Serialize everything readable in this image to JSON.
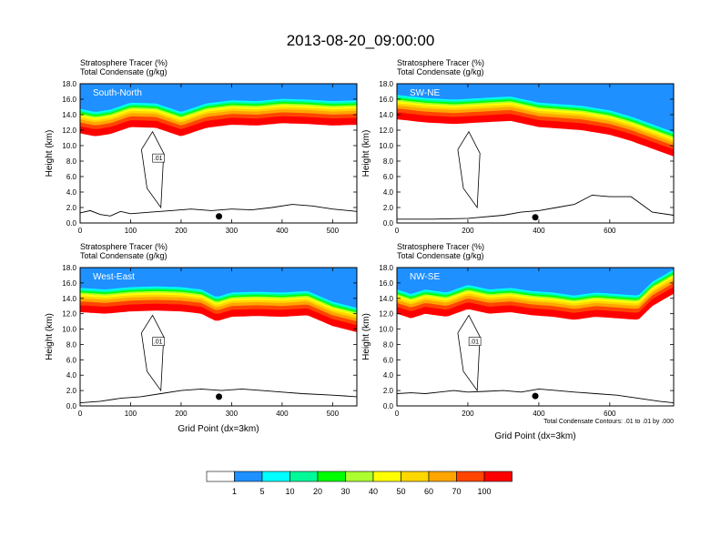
{
  "figure_title": "2013-08-20_09:00:00",
  "chart_data": [
    {
      "type": "contour",
      "label": "South-North",
      "title": [
        "Stratosphere Tracer   (%)",
        "Total Condensate   (g/kg)"
      ],
      "xlabel": "",
      "ylabel": "Height (km)",
      "xlim": [
        0,
        548
      ],
      "ylim": [
        0,
        18
      ],
      "xticks": [
        0,
        100,
        200,
        300,
        400,
        500
      ],
      "yticks": [
        0,
        2,
        4,
        6,
        8,
        10,
        12,
        14,
        16,
        18
      ],
      "tracer_band_top_km": [
        [
          0,
          11.6
        ],
        [
          30,
          11.2
        ],
        [
          60,
          11.5
        ],
        [
          100,
          12.4
        ],
        [
          150,
          12.3
        ],
        [
          200,
          11.2
        ],
        [
          250,
          12.3
        ],
        [
          300,
          12.7
        ],
        [
          350,
          12.6
        ],
        [
          400,
          12.9
        ],
        [
          450,
          12.8
        ],
        [
          500,
          12.6
        ],
        [
          548,
          12.7
        ]
      ],
      "terrain_km": [
        [
          0,
          1.3
        ],
        [
          20,
          1.6
        ],
        [
          40,
          1.1
        ],
        [
          60,
          0.9
        ],
        [
          80,
          1.5
        ],
        [
          100,
          1.2
        ],
        [
          140,
          1.4
        ],
        [
          180,
          1.6
        ],
        [
          220,
          1.8
        ],
        [
          260,
          1.6
        ],
        [
          300,
          1.8
        ],
        [
          340,
          1.7
        ],
        [
          380,
          2.0
        ],
        [
          420,
          2.4
        ],
        [
          460,
          2.2
        ],
        [
          500,
          1.8
        ],
        [
          548,
          1.5
        ]
      ],
      "point_x": 275,
      "contour_label": ".01",
      "note": ""
    },
    {
      "type": "contour",
      "label": "SW-NE",
      "title": [
        "Stratosphere Tracer   (%)",
        "Total Condensate   (g/kg)"
      ],
      "xlabel": "",
      "ylabel": "Height (km)",
      "xlim": [
        0,
        780
      ],
      "ylim": [
        0,
        18
      ],
      "xticks": [
        0,
        200,
        400,
        600
      ],
      "yticks": [
        0,
        2,
        4,
        6,
        8,
        10,
        12,
        14,
        16,
        18
      ],
      "tracer_band_top_km": [
        [
          0,
          13.4
        ],
        [
          80,
          13.0
        ],
        [
          160,
          12.8
        ],
        [
          240,
          13.0
        ],
        [
          320,
          13.2
        ],
        [
          400,
          12.4
        ],
        [
          460,
          12.2
        ],
        [
          520,
          12.0
        ],
        [
          600,
          11.4
        ],
        [
          660,
          10.6
        ],
        [
          720,
          9.6
        ],
        [
          780,
          8.6
        ]
      ],
      "terrain_km": [
        [
          0,
          0.5
        ],
        [
          100,
          0.5
        ],
        [
          200,
          0.6
        ],
        [
          300,
          1.0
        ],
        [
          350,
          1.4
        ],
        [
          400,
          1.6
        ],
        [
          450,
          2.0
        ],
        [
          500,
          2.4
        ],
        [
          550,
          3.6
        ],
        [
          600,
          3.4
        ],
        [
          660,
          3.4
        ],
        [
          720,
          1.4
        ],
        [
          780,
          1.0
        ]
      ],
      "point_x": 390,
      "contour_label": "",
      "note": ""
    },
    {
      "type": "contour",
      "label": "West-East",
      "title": [
        "Stratosphere Tracer   (%)",
        "Total Condensate   (g/kg)"
      ],
      "xlabel": "Grid Point (dx=3km)",
      "ylabel": "Height (km)",
      "xlim": [
        0,
        548
      ],
      "ylim": [
        0,
        18
      ],
      "xticks": [
        0,
        100,
        200,
        300,
        400,
        500
      ],
      "yticks": [
        0,
        2,
        4,
        6,
        8,
        10,
        12,
        14,
        16,
        18
      ],
      "tracer_band_top_km": [
        [
          0,
          12.2
        ],
        [
          50,
          12.0
        ],
        [
          100,
          12.3
        ],
        [
          150,
          12.4
        ],
        [
          200,
          12.3
        ],
        [
          240,
          12.0
        ],
        [
          270,
          11.0
        ],
        [
          300,
          11.6
        ],
        [
          350,
          11.7
        ],
        [
          400,
          11.6
        ],
        [
          450,
          11.8
        ],
        [
          500,
          10.4
        ],
        [
          548,
          9.6
        ]
      ],
      "terrain_km": [
        [
          0,
          0.4
        ],
        [
          40,
          0.6
        ],
        [
          80,
          1.0
        ],
        [
          120,
          1.2
        ],
        [
          160,
          1.6
        ],
        [
          200,
          2.0
        ],
        [
          240,
          2.2
        ],
        [
          280,
          2.0
        ],
        [
          320,
          2.2
        ],
        [
          360,
          2.0
        ],
        [
          400,
          1.8
        ],
        [
          440,
          1.6
        ],
        [
          500,
          1.4
        ],
        [
          548,
          1.2
        ]
      ],
      "point_x": 275,
      "contour_label": ".01",
      "note": ""
    },
    {
      "type": "contour",
      "label": "NW-SE",
      "title": [
        "Stratosphere Tracer   (%)",
        "Total Condensate   (g/kg)"
      ],
      "xlabel": "Grid Point (dx=3km)",
      "ylabel": "Height (km)",
      "xlim": [
        0,
        780
      ],
      "ylim": [
        0,
        18
      ],
      "xticks": [
        0,
        200,
        400,
        600
      ],
      "yticks": [
        0,
        2,
        4,
        6,
        8,
        10,
        12,
        14,
        16,
        18
      ],
      "tracer_band_top_km": [
        [
          0,
          12.0
        ],
        [
          40,
          11.4
        ],
        [
          80,
          12.0
        ],
        [
          140,
          11.6
        ],
        [
          200,
          12.6
        ],
        [
          260,
          12.0
        ],
        [
          320,
          12.2
        ],
        [
          380,
          11.8
        ],
        [
          440,
          11.6
        ],
        [
          500,
          11.2
        ],
        [
          560,
          11.6
        ],
        [
          620,
          11.4
        ],
        [
          680,
          11.2
        ],
        [
          720,
          13.0
        ],
        [
          780,
          14.6
        ]
      ],
      "terrain_km": [
        [
          0,
          1.6
        ],
        [
          40,
          1.7
        ],
        [
          80,
          1.6
        ],
        [
          120,
          1.8
        ],
        [
          160,
          2.0
        ],
        [
          200,
          1.8
        ],
        [
          250,
          1.9
        ],
        [
          300,
          2.0
        ],
        [
          350,
          1.8
        ],
        [
          400,
          2.2
        ],
        [
          450,
          2.0
        ],
        [
          500,
          1.8
        ],
        [
          560,
          1.6
        ],
        [
          620,
          1.4
        ],
        [
          680,
          1.0
        ],
        [
          740,
          0.6
        ],
        [
          780,
          0.4
        ]
      ],
      "point_x": 390,
      "contour_label": ".01",
      "note": "Total Condensate Contours: .01 to .01 by .000"
    }
  ],
  "colorbar": {
    "colors": [
      "#ffffff",
      "#1e90ff",
      "#00ffff",
      "#00fa9a",
      "#00ff00",
      "#adff2f",
      "#ffff00",
      "#ffd700",
      "#ffa500",
      "#ff4500",
      "#ff0000"
    ],
    "labels": [
      "1",
      "5",
      "10",
      "20",
      "30",
      "40",
      "50",
      "60",
      "70",
      "100"
    ]
  }
}
